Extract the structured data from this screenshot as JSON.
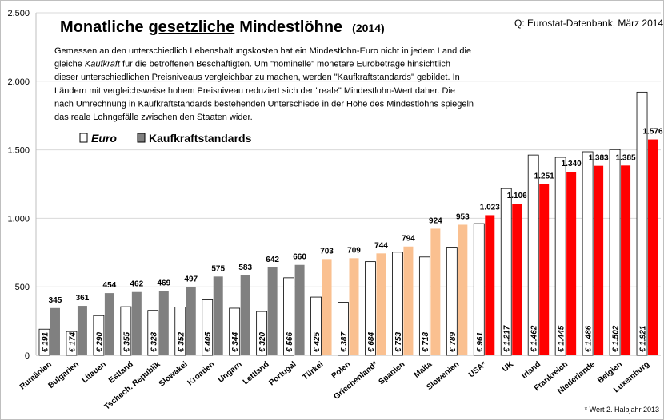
{
  "chart_data": {
    "type": "bar",
    "title_parts": [
      "Monatliche",
      "gesetzliche",
      "Mindestlöhne"
    ],
    "title_year": "(2014)",
    "source": "Q: Eurostat-Datenbank, März 2014",
    "note_lines": [
      [
        "Gemessen an den unterschiedlich Lebenshaltungskosten hat ein Mindestlohn-Euro nicht in jedem Land die"
      ],
      [
        "gleiche ",
        "Kaufkraft",
        " für die betroffenen Beschäftigten. Um \"nominelle\" monetäre Eurobeträge hinsichtlich"
      ],
      [
        "dieser unterschiedlichen Preisniveaus vergleichbar zu machen, werden \"Kaufkraftstandards\" gebildet. In"
      ],
      [
        "Ländern mit vergleichsweise hohem Preisniveau reduziert sich der \"reale\" Mindestlohn-Wert daher. Die"
      ],
      [
        "nach Umrechnung in Kaufkraftstandards bestehenden Unterschiede in der Höhe des Mindestlohns spiegeln"
      ],
      [
        "das reale Lohngefälle zwischen den Staaten wider."
      ]
    ],
    "footnote": "* Wert 2. Halbjahr 2013",
    "categories": [
      "Rumänien",
      "Bulgarien",
      "Litauen",
      "Estland",
      "Tschech. Republik",
      "Slowakei",
      "Kroatien",
      "Ungarn",
      "Lettland",
      "Portugal",
      "Türkei",
      "Polen",
      "Griechenland*",
      "Spanien",
      "Malta",
      "Slowenien",
      "USA*",
      "UK",
      "Irland",
      "Frankreich",
      "Niederlande",
      "Belgien",
      "Luxemburg"
    ],
    "series": [
      {
        "name": "Euro",
        "color": "#ffffff",
        "values": [
          191,
          174,
          290,
          355,
          328,
          352,
          405,
          344,
          320,
          566,
          425,
          387,
          684,
          753,
          718,
          789,
          961,
          1217,
          1462,
          1445,
          1486,
          1502,
          1921
        ],
        "value_labels": [
          "€ 191",
          "€ 174",
          "€ 290",
          "€ 355",
          "€ 328",
          "€ 352",
          "€ 405",
          "€ 344",
          "€ 320",
          "€ 566",
          "€ 425",
          "€ 387",
          "€ 684",
          "€ 753",
          "€ 718",
          "€ 789",
          "€ 961",
          "€ 1.217",
          "€ 1.462",
          "€ 1.445",
          "€ 1.486",
          "€ 1.502",
          "€ 1.921"
        ]
      },
      {
        "name": "Kaufkraftstandards",
        "color": "#808080",
        "colors": [
          "#808080",
          "#808080",
          "#808080",
          "#808080",
          "#808080",
          "#808080",
          "#808080",
          "#808080",
          "#808080",
          "#808080",
          "#fac090",
          "#fac090",
          "#fac090",
          "#fac090",
          "#fac090",
          "#fac090",
          "#ff0000",
          "#ff0000",
          "#ff0000",
          "#ff0000",
          "#ff0000",
          "#ff0000",
          "#ff0000"
        ],
        "values": [
          345,
          361,
          454,
          462,
          469,
          497,
          575,
          583,
          642,
          660,
          703,
          709,
          744,
          794,
          924,
          953,
          1023,
          1106,
          1251,
          1340,
          1383,
          1385,
          1576
        ],
        "value_labels": [
          "345",
          "361",
          "454",
          "462",
          "469",
          "497",
          "575",
          "583",
          "642",
          "660",
          "703",
          "709",
          "744",
          "794",
          "924",
          "953",
          "1.023",
          "1.106",
          "1.251",
          "1.340",
          "1.383",
          "1.385",
          "1.576"
        ]
      }
    ],
    "ylim": [
      0,
      2500
    ],
    "yticks": [
      0,
      500,
      {
        "value": 1000,
        "label": "1.000"
      },
      {
        "value": 1500,
        "label": "1.500"
      },
      {
        "value": 2000,
        "label": "2.000"
      },
      {
        "value": 2500,
        "label": "2.500"
      }
    ],
    "grid": true
  }
}
